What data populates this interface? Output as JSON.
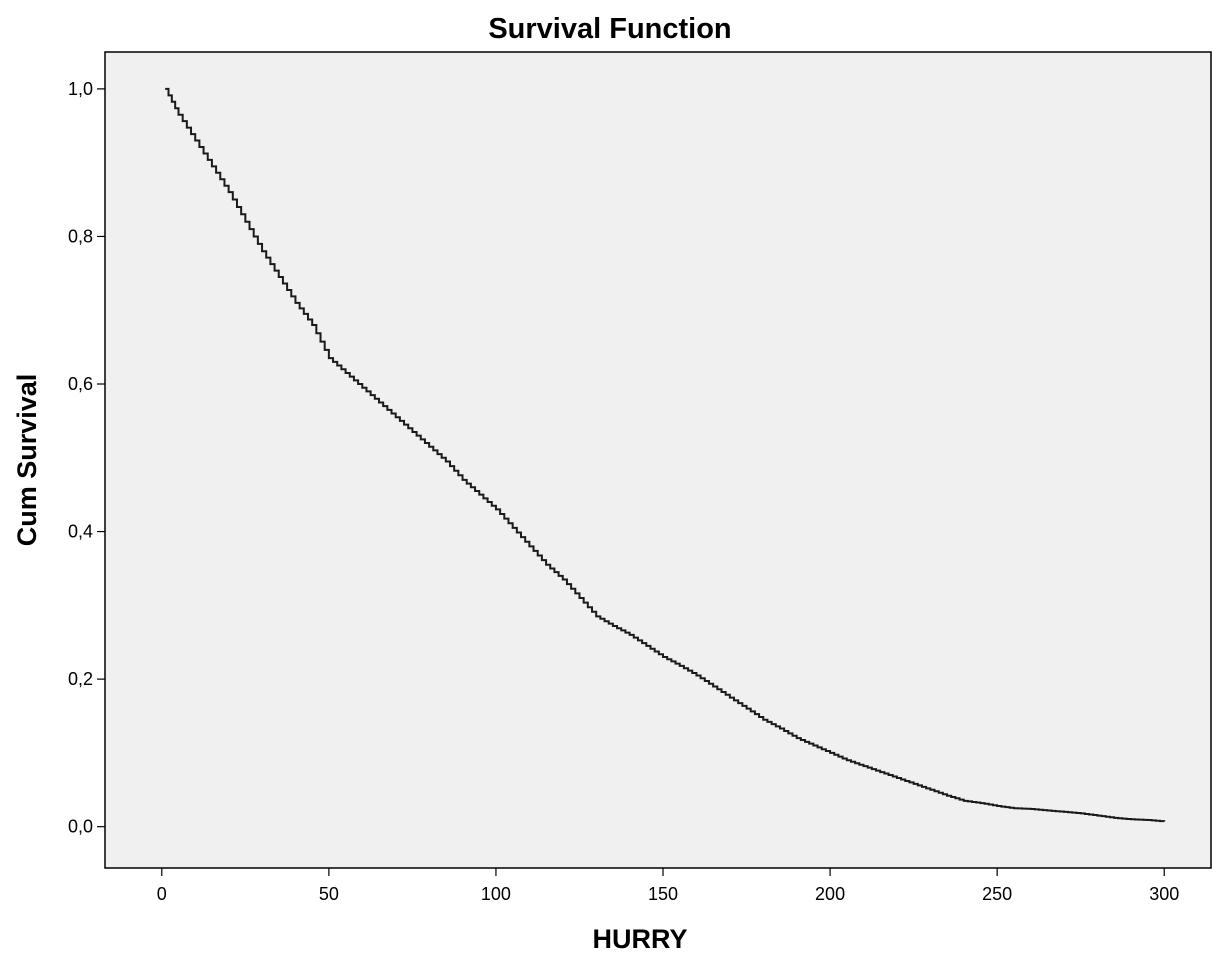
{
  "chart_data": {
    "type": "line",
    "title": "Survival Function",
    "xlabel": "HURRY",
    "ylabel": "Cum Survival",
    "xlim": [
      -17,
      314
    ],
    "ylim": [
      -0.056,
      1.05
    ],
    "x_ticks": [
      0,
      50,
      100,
      150,
      200,
      250,
      300
    ],
    "x_tick_labels": [
      "0",
      "50",
      "100",
      "150",
      "200",
      "250",
      "300"
    ],
    "y_ticks": [
      0.0,
      0.2,
      0.4,
      0.6,
      0.8,
      1.0
    ],
    "y_tick_labels": [
      "0,0",
      "0,2",
      "0,4",
      "0,6",
      "0,8",
      "1,0"
    ],
    "grid": false,
    "background_color": "#f0f0f0",
    "line_color": "#1a1a1a",
    "step": true,
    "series": [
      {
        "x": [
          1,
          5,
          10,
          15,
          20,
          25,
          30,
          35,
          40,
          45,
          50,
          55,
          60,
          65,
          70,
          75,
          80,
          85,
          90,
          95,
          100,
          105,
          110,
          115,
          120,
          125,
          130,
          135,
          140,
          145,
          150,
          155,
          160,
          165,
          170,
          175,
          180,
          185,
          190,
          195,
          200,
          205,
          210,
          215,
          220,
          225,
          230,
          235,
          240,
          245,
          250,
          255,
          260,
          265,
          270,
          275,
          280,
          285,
          290,
          295,
          300
        ],
        "y": [
          1.0,
          0.965,
          0.93,
          0.895,
          0.86,
          0.82,
          0.78,
          0.745,
          0.71,
          0.68,
          0.635,
          0.615,
          0.595,
          0.575,
          0.555,
          0.535,
          0.515,
          0.495,
          0.47,
          0.45,
          0.43,
          0.405,
          0.38,
          0.355,
          0.335,
          0.31,
          0.285,
          0.272,
          0.26,
          0.245,
          0.23,
          0.218,
          0.205,
          0.19,
          0.175,
          0.16,
          0.145,
          0.133,
          0.12,
          0.11,
          0.1,
          0.09,
          0.082,
          0.074,
          0.066,
          0.058,
          0.05,
          0.042,
          0.035,
          0.032,
          0.028,
          0.025,
          0.024,
          0.022,
          0.02,
          0.018,
          0.015,
          0.012,
          0.01,
          0.009,
          0.007
        ]
      }
    ]
  }
}
